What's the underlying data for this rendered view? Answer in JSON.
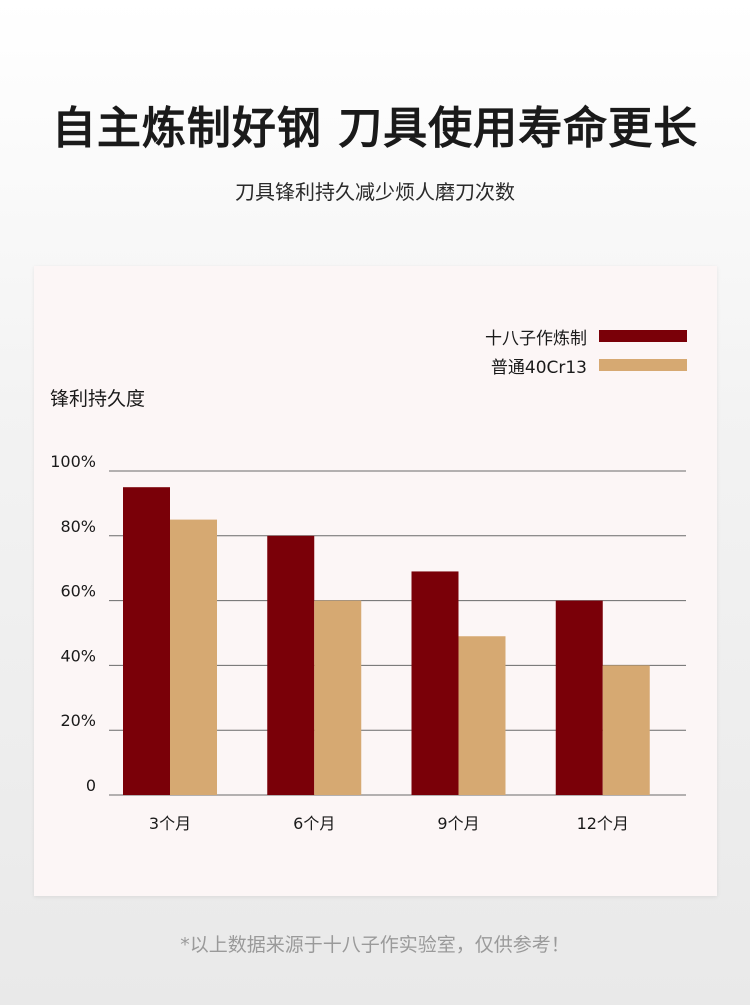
{
  "header": {
    "title": "自主炼制好钢 刀具使用寿命更长",
    "subtitle": "刀具锋利持久减少烦人磨刀次数"
  },
  "footnote": "*以上数据来源于十八子作实验室，仅供参考！",
  "colors": {
    "series1": "#7a0008",
    "series2": "#d6a972",
    "grid": "#6a6a6a"
  },
  "chart_data": {
    "type": "bar",
    "ylabel": "锋利持久度",
    "categories": [
      "3个月",
      "6个月",
      "9个月",
      "12个月"
    ],
    "yticks": [
      "0",
      "20%",
      "40%",
      "60%",
      "80%",
      "100%"
    ],
    "ylim": [
      0,
      100
    ],
    "grid": true,
    "legend": "top-right",
    "series": [
      {
        "name": "十八子作炼制",
        "values": [
          95,
          80,
          69,
          60
        ]
      },
      {
        "name": "普通40Cr13",
        "values": [
          85,
          60,
          49,
          40
        ]
      }
    ]
  }
}
